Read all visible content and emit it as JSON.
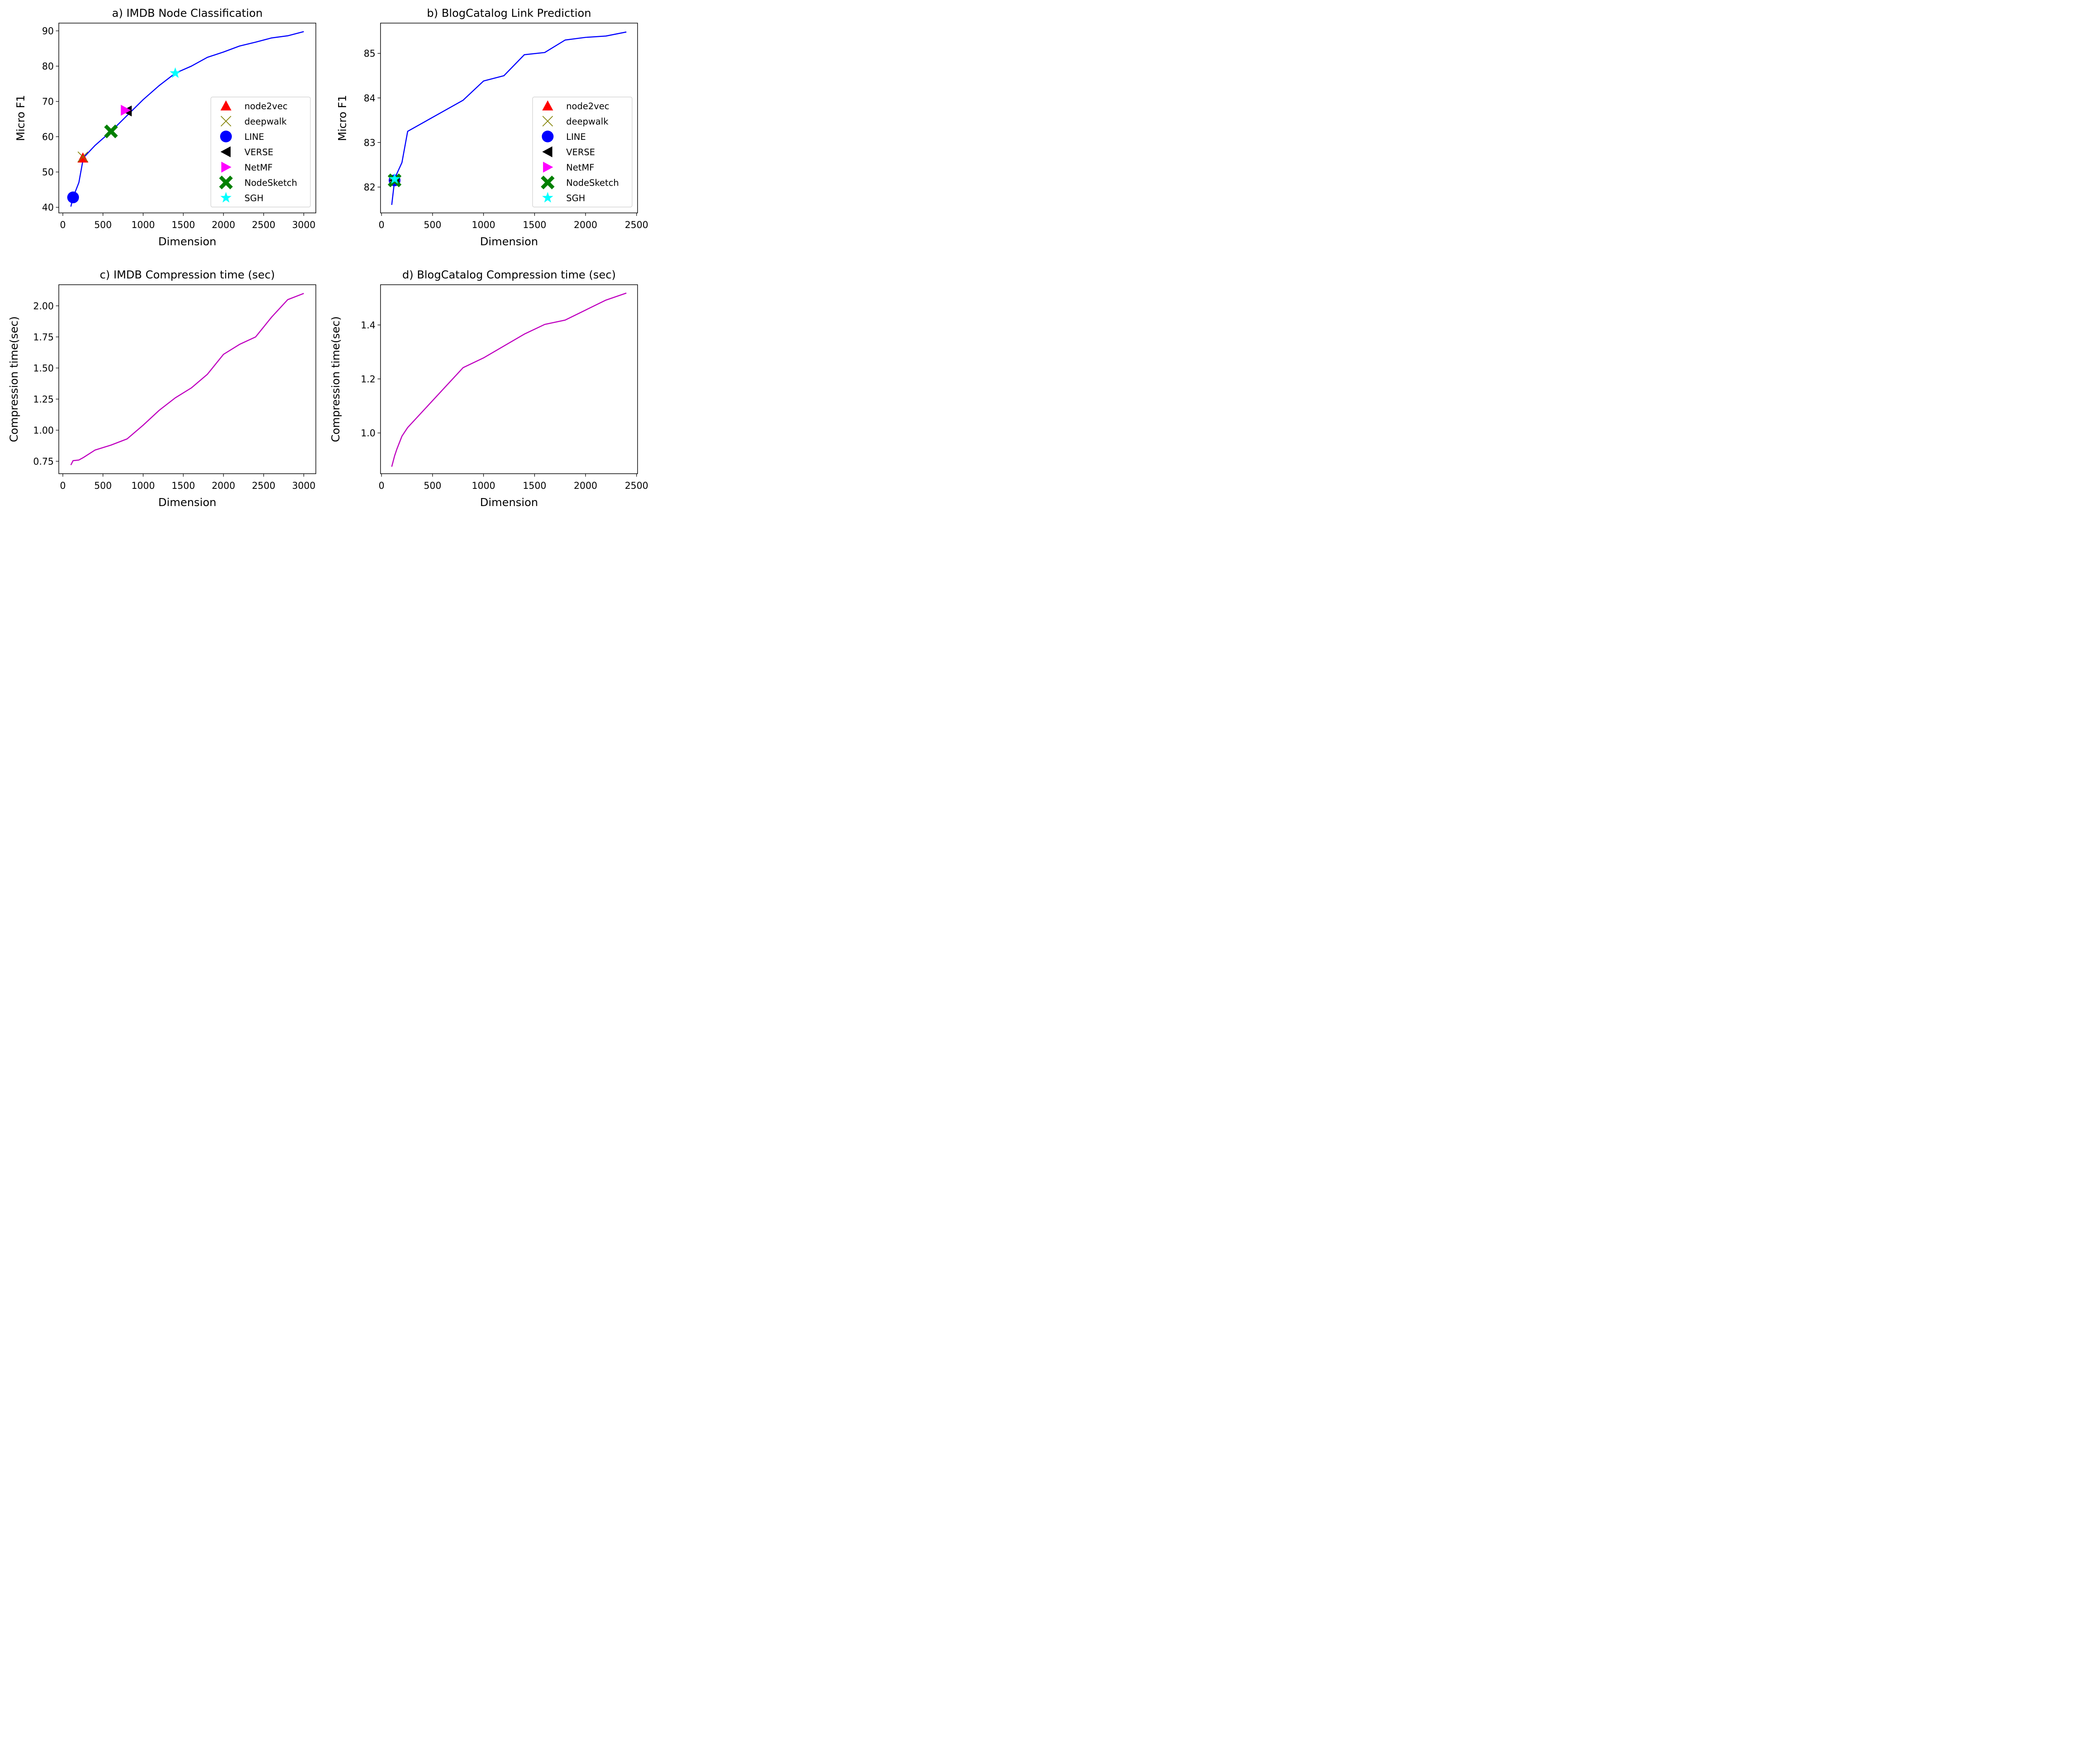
{
  "chart_data": [
    {
      "type": "line",
      "title": "a) IMDB Node Classification",
      "xlabel": "Dimension",
      "ylabel": "Micro F1",
      "xlim": [
        -50,
        3150
      ],
      "ylim": [
        38.4,
        92.2
      ],
      "xticks": [
        0,
        500,
        1000,
        1500,
        2000,
        2500,
        3000
      ],
      "yticks": [
        40,
        50,
        60,
        70,
        80,
        90
      ],
      "ytick_decimals": 0,
      "line_color": "#0000ff",
      "series": [
        {
          "name": "SGH",
          "x": [
            100,
            128,
            200,
            256,
            400,
            600,
            800,
            1000,
            1200,
            1400,
            1600,
            1800,
            2000,
            2200,
            2400,
            2600,
            2800,
            3000
          ],
          "y": [
            40.2,
            42.8,
            47.0,
            54.0,
            57.5,
            61.5,
            66.0,
            70.5,
            74.5,
            78.0,
            80.0,
            82.5,
            84.0,
            85.7,
            86.8,
            88.0,
            88.6,
            89.8
          ]
        }
      ],
      "markers": [
        {
          "name": "node2vec",
          "x": 250,
          "y": 54.0,
          "shape": "triangle-up",
          "color": "#ff0000"
        },
        {
          "name": "deepwalk",
          "x": 250,
          "y": 54.3,
          "shape": "x",
          "color": "#808000"
        },
        {
          "name": "LINE",
          "x": 128,
          "y": 42.8,
          "shape": "circle",
          "color": "#0000ff"
        },
        {
          "name": "VERSE",
          "x": 800,
          "y": 67.3,
          "shape": "triangle-left",
          "color": "#000000"
        },
        {
          "name": "NetMF",
          "x": 780,
          "y": 67.5,
          "shape": "triangle-right",
          "color": "#ff00ff"
        },
        {
          "name": "NodeSketch",
          "x": 600,
          "y": 61.5,
          "shape": "cross",
          "color": "#008000"
        },
        {
          "name": "SGH",
          "x": 1400,
          "y": 78.0,
          "shape": "star",
          "color": "#00ffff"
        }
      ],
      "legend": {
        "position": "center-right",
        "entries": [
          {
            "label": "node2vec",
            "shape": "triangle-up",
            "color": "#ff0000"
          },
          {
            "label": "deepwalk",
            "shape": "x",
            "color": "#808000"
          },
          {
            "label": "LINE",
            "shape": "circle",
            "color": "#0000ff"
          },
          {
            "label": "VERSE",
            "shape": "triangle-left",
            "color": "#000000"
          },
          {
            "label": "NetMF",
            "shape": "triangle-right",
            "color": "#ff00ff"
          },
          {
            "label": "NodeSketch",
            "shape": "cross",
            "color": "#008000"
          },
          {
            "label": "SGH",
            "shape": "star",
            "color": "#00ffff"
          }
        ]
      }
    },
    {
      "type": "line",
      "title": "b) BlogCatalog Link Prediction",
      "xlabel": "Dimension",
      "ylabel": "Micro F1",
      "xlim": [
        -10,
        2510
      ],
      "ylim": [
        81.42,
        85.68
      ],
      "xticks": [
        0,
        500,
        1000,
        1500,
        2000,
        2500
      ],
      "yticks": [
        82,
        83,
        84,
        85
      ],
      "ytick_decimals": 0,
      "line_color": "#0000ff",
      "series": [
        {
          "name": "SGH",
          "x": [
            100,
            128,
            150,
            200,
            256,
            800,
            1000,
            1200,
            1400,
            1600,
            1800,
            2000,
            2200,
            2400
          ],
          "y": [
            81.6,
            82.15,
            82.3,
            82.55,
            83.25,
            83.95,
            84.38,
            84.5,
            84.97,
            85.02,
            85.3,
            85.36,
            85.39,
            85.48
          ]
        }
      ],
      "markers": [
        {
          "name": "node2vec",
          "x": 128,
          "y": 82.15,
          "shape": "triangle-up",
          "color": "#ff0000"
        },
        {
          "name": "deepwalk",
          "x": 128,
          "y": 82.15,
          "shape": "x",
          "color": "#808000"
        },
        {
          "name": "LINE",
          "x": 128,
          "y": 82.15,
          "shape": "circle",
          "color": "#0000ff"
        },
        {
          "name": "NetMF",
          "x": 128,
          "y": 82.15,
          "shape": "triangle-right",
          "color": "#ff00ff"
        },
        {
          "name": "VERSE",
          "x": 128,
          "y": 82.15,
          "shape": "triangle-left",
          "color": "#000000"
        },
        {
          "name": "NodeSketch",
          "x": 128,
          "y": 82.15,
          "shape": "cross",
          "color": "#008000"
        },
        {
          "name": "SGH",
          "x": 128,
          "y": 82.18,
          "shape": "star",
          "color": "#00ffff"
        }
      ],
      "legend": {
        "position": "center-right",
        "entries": [
          {
            "label": "node2vec",
            "shape": "triangle-up",
            "color": "#ff0000"
          },
          {
            "label": "deepwalk",
            "shape": "x",
            "color": "#808000"
          },
          {
            "label": "LINE",
            "shape": "circle",
            "color": "#0000ff"
          },
          {
            "label": "VERSE",
            "shape": "triangle-left",
            "color": "#000000"
          },
          {
            "label": "NetMF",
            "shape": "triangle-right",
            "color": "#ff00ff"
          },
          {
            "label": "NodeSketch",
            "shape": "cross",
            "color": "#008000"
          },
          {
            "label": "SGH",
            "shape": "star",
            "color": "#00ffff"
          }
        ]
      }
    },
    {
      "type": "line",
      "title": "c) IMDB Compression time (sec)",
      "xlabel": "Dimension",
      "ylabel": "Compression time(sec)",
      "xlim": [
        -50,
        3150
      ],
      "ylim": [
        0.65,
        2.17
      ],
      "xticks": [
        0,
        500,
        1000,
        1500,
        2000,
        2500,
        3000
      ],
      "yticks": [
        0.75,
        1.0,
        1.25,
        1.5,
        1.75,
        2.0
      ],
      "ytick_decimals": 2,
      "line_color": "#bf00bf",
      "series": [
        {
          "name": "compression",
          "x": [
            100,
            128,
            200,
            256,
            400,
            600,
            800,
            1000,
            1200,
            1400,
            1600,
            1800,
            2000,
            2200,
            2400,
            2600,
            2800,
            3000
          ],
          "y": [
            0.72,
            0.755,
            0.76,
            0.78,
            0.84,
            0.88,
            0.93,
            1.04,
            1.16,
            1.26,
            1.34,
            1.45,
            1.61,
            1.69,
            1.75,
            1.91,
            2.05,
            2.1
          ]
        }
      ],
      "markers": [],
      "legend": null
    },
    {
      "type": "line",
      "title": "d) BlogCatalog Compression time (sec)",
      "xlabel": "Dimension",
      "ylabel": "Compression time(sec)",
      "xlim": [
        -10,
        2510
      ],
      "ylim": [
        0.849,
        1.549
      ],
      "xticks": [
        0,
        500,
        1000,
        1500,
        2000,
        2500
      ],
      "yticks": [
        1.0,
        1.2,
        1.4
      ],
      "ytick_decimals": 1,
      "line_color": "#bf00bf",
      "series": [
        {
          "name": "compression",
          "x": [
            100,
            128,
            150,
            200,
            256,
            800,
            1000,
            1200,
            1400,
            1600,
            1800,
            2000,
            2200,
            2400
          ],
          "y": [
            0.875,
            0.915,
            0.94,
            0.988,
            1.02,
            1.242,
            1.278,
            1.322,
            1.366,
            1.402,
            1.418,
            1.455,
            1.492,
            1.518
          ]
        }
      ],
      "markers": [],
      "legend": null
    }
  ]
}
